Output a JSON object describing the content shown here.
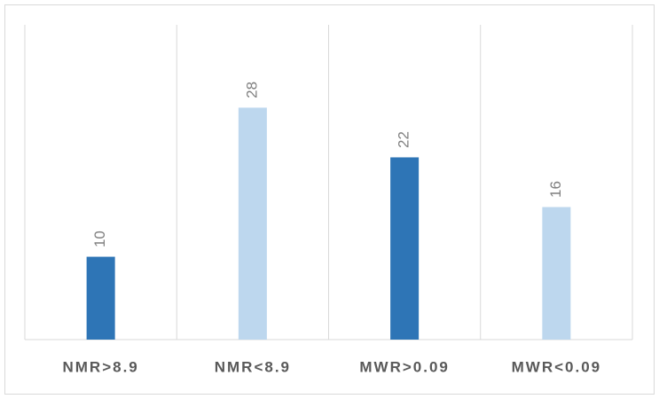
{
  "chart_data": {
    "type": "bar",
    "categories": [
      "NMR>8.9",
      "NMR<8.9",
      "MWR>0.09",
      "MWR<0.09"
    ],
    "values": [
      10,
      28,
      22,
      16
    ],
    "colors": [
      "#2e75b6",
      "#bdd7ee",
      "#2e75b6",
      "#bdd7ee"
    ],
    "ylim": [
      0,
      38
    ]
  }
}
